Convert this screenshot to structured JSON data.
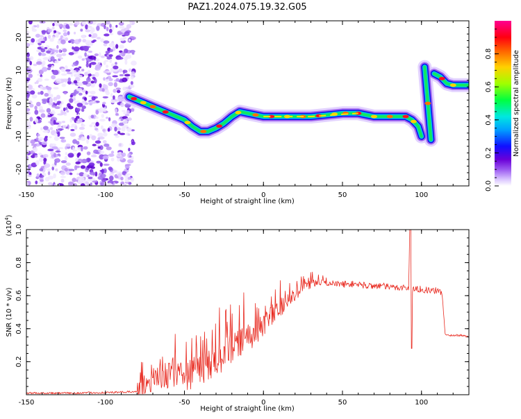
{
  "title": "PAZ1.2024.075.19.32.G05",
  "chart_data": [
    {
      "type": "heatmap",
      "xlabel": "Height of straight line (km)",
      "ylabel": "Frequency (Hz)",
      "xlim": [
        -150,
        130
      ],
      "ylim": [
        -25,
        25
      ],
      "xticks": [
        -150,
        -100,
        -50,
        0,
        50,
        100
      ],
      "yticks": [
        -20,
        -10,
        0,
        10,
        20
      ],
      "colorbar": {
        "label": "Normalized spectral amplitude",
        "range": [
          0.0,
          1.0
        ],
        "ticks": [
          0.0,
          0.2,
          0.4,
          0.6,
          0.8
        ],
        "colormap": [
          "#ffffff",
          "#b48cf0",
          "#6a00d8",
          "#0000ff",
          "#00c8ff",
          "#00ff40",
          "#c8ff00",
          "#ffb000",
          "#ff0000",
          "#ff0090"
        ]
      },
      "noise_region": {
        "x_range": [
          -150,
          -82
        ],
        "y_range": [
          -25,
          25
        ]
      },
      "ridge": [
        {
          "x": -85,
          "y": 2
        },
        {
          "x": -80,
          "y": 1
        },
        {
          "x": -75,
          "y": 0
        },
        {
          "x": -70,
          "y": -1
        },
        {
          "x": -65,
          "y": -2
        },
        {
          "x": -60,
          "y": -3
        },
        {
          "x": -55,
          "y": -4
        },
        {
          "x": -50,
          "y": -5
        },
        {
          "x": -45,
          "y": -7
        },
        {
          "x": -40,
          "y": -8.5
        },
        {
          "x": -35,
          "y": -8.5
        },
        {
          "x": -30,
          "y": -7.5
        },
        {
          "x": -25,
          "y": -6
        },
        {
          "x": -20,
          "y": -4
        },
        {
          "x": -15,
          "y": -2.5
        },
        {
          "x": -10,
          "y": -3
        },
        {
          "x": -5,
          "y": -3.5
        },
        {
          "x": 0,
          "y": -4
        },
        {
          "x": 10,
          "y": -4
        },
        {
          "x": 20,
          "y": -4
        },
        {
          "x": 30,
          "y": -4
        },
        {
          "x": 40,
          "y": -3.5
        },
        {
          "x": 50,
          "y": -3
        },
        {
          "x": 60,
          "y": -3
        },
        {
          "x": 70,
          "y": -4
        },
        {
          "x": 80,
          "y": -4
        },
        {
          "x": 90,
          "y": -4
        },
        {
          "x": 94,
          "y": -5
        },
        {
          "x": 98,
          "y": -7
        },
        {
          "x": 100,
          "y": -10
        }
      ],
      "branches": [
        {
          "points": [
            {
              "x": 102,
              "y": 11
            },
            {
              "x": 104,
              "y": 0
            },
            {
              "x": 106,
              "y": -11
            }
          ]
        },
        {
          "points": [
            {
              "x": 108,
              "y": 9
            },
            {
              "x": 112,
              "y": 8
            },
            {
              "x": 116,
              "y": 6
            },
            {
              "x": 120,
              "y": 5.5
            },
            {
              "x": 130,
              "y": 5.5
            }
          ]
        }
      ]
    },
    {
      "type": "line",
      "xlabel": "Height of straight line (km)",
      "ylabel": "SNR (10 * v/v)",
      "y_multiplier": "(x10^4)",
      "xlim": [
        -150,
        130
      ],
      "ylim": [
        0,
        1.0
      ],
      "xticks": [
        -150,
        -100,
        -50,
        0,
        50,
        100
      ],
      "yticks": [
        0.2,
        0.4,
        0.6,
        0.8,
        1.0
      ],
      "color": "#e8281e",
      "series": [
        {
          "x": [
            -150,
            -120,
            -90,
            -80,
            -75,
            -70,
            -65,
            -60,
            -55,
            -50,
            -45,
            -40,
            -35,
            -30,
            -25,
            -20,
            -15,
            -10,
            -5,
            0,
            5,
            10,
            15,
            20,
            25,
            30,
            35,
            40,
            45,
            50,
            55,
            60,
            65,
            70,
            75,
            80,
            85,
            90,
            93,
            95,
            100,
            105,
            110,
            113,
            115,
            120,
            125,
            130
          ],
          "values": [
            0.01,
            0.01,
            0.015,
            0.02,
            0.04,
            0.08,
            0.11,
            0.12,
            0.11,
            0.1,
            0.13,
            0.15,
            0.18,
            0.21,
            0.24,
            0.28,
            0.32,
            0.35,
            0.37,
            0.42,
            0.48,
            0.52,
            0.57,
            0.61,
            0.65,
            0.67,
            0.68,
            0.68,
            0.67,
            0.67,
            0.67,
            0.67,
            0.66,
            0.66,
            0.66,
            0.65,
            0.65,
            0.65,
            0.64,
            0.64,
            0.64,
            0.63,
            0.63,
            0.62,
            0.36,
            0.36,
            0.36,
            0.35
          ]
        }
      ]
    }
  ]
}
